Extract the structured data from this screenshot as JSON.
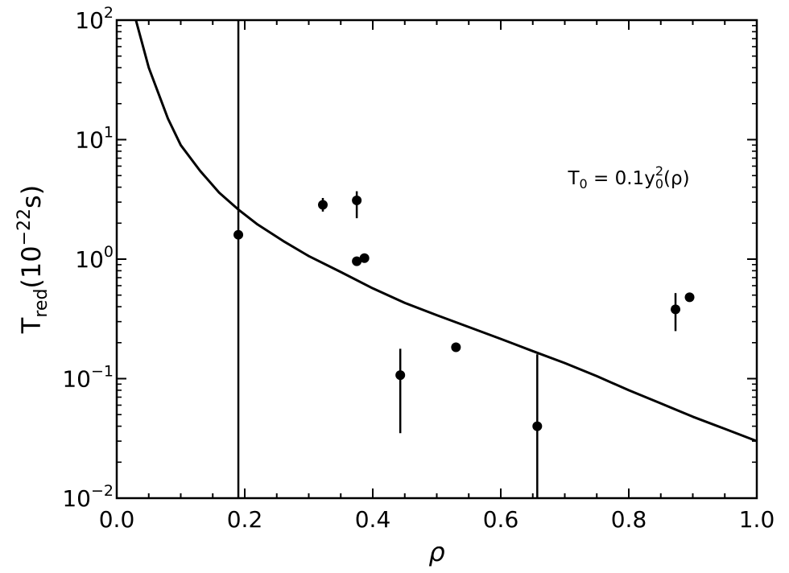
{
  "chart_data": {
    "type": "scatter",
    "title": "",
    "xlabel": "ρ",
    "ylabel": {
      "base": "T",
      "sub": "red",
      "rest": "(10",
      "sup": "−22",
      "tail": "s)"
    },
    "xlim": [
      0.0,
      1.0
    ],
    "ylim": [
      0.01,
      100
    ],
    "yscale": "log",
    "x_ticks": [
      "0.0",
      "0.2",
      "0.4",
      "0.6",
      "0.8",
      "1.0"
    ],
    "x_tick_values": [
      0.0,
      0.2,
      0.4,
      0.6,
      0.8,
      1.0
    ],
    "y_ticks": [
      {
        "value": 100,
        "base": "10",
        "exp": "2"
      },
      {
        "value": 10,
        "base": "10",
        "exp": "1"
      },
      {
        "value": 1,
        "base": "10",
        "exp": "0"
      },
      {
        "value": 0.1,
        "base": "10",
        "exp": "−1"
      },
      {
        "value": 0.01,
        "base": "10",
        "exp": "−2"
      }
    ],
    "grid": false,
    "series": [
      {
        "kind": "points",
        "color": "#000000",
        "points": [
          {
            "x": 0.19,
            "y": 1.6,
            "ylo": 0.0,
            "yhi": 100
          },
          {
            "x": 0.322,
            "y": 2.85,
            "ylo": 2.5,
            "yhi": 3.25
          },
          {
            "x": 0.375,
            "y": 3.1,
            "ylo": 2.2,
            "yhi": 3.7
          },
          {
            "x": 0.375,
            "y": 0.96,
            "ylo": 0.96,
            "yhi": 0.96
          },
          {
            "x": 0.387,
            "y": 1.02,
            "ylo": 1.02,
            "yhi": 1.02
          },
          {
            "x": 0.443,
            "y": 0.107,
            "ylo": 0.035,
            "yhi": 0.178
          },
          {
            "x": 0.53,
            "y": 0.183,
            "ylo": 0.183,
            "yhi": 0.183
          },
          {
            "x": 0.657,
            "y": 0.04,
            "ylo": 0.0,
            "yhi": 0.16
          },
          {
            "x": 0.873,
            "y": 0.38,
            "ylo": 0.25,
            "yhi": 0.52
          },
          {
            "x": 0.895,
            "y": 0.48,
            "ylo": 0.48,
            "yhi": 0.48
          }
        ]
      },
      {
        "kind": "curve",
        "color": "#000000",
        "x": [
          0.03,
          0.05,
          0.08,
          0.1,
          0.13,
          0.16,
          0.19,
          0.22,
          0.26,
          0.3,
          0.35,
          0.4,
          0.45,
          0.5,
          0.55,
          0.6,
          0.65,
          0.7,
          0.75,
          0.8,
          0.85,
          0.9,
          0.95,
          1.0
        ],
        "y": [
          100,
          40,
          15,
          9.0,
          5.5,
          3.6,
          2.6,
          1.95,
          1.42,
          1.06,
          0.78,
          0.57,
          0.43,
          0.34,
          0.27,
          0.215,
          0.17,
          0.135,
          0.105,
          0.08,
          0.062,
          0.048,
          0.038,
          0.03
        ]
      }
    ],
    "annotation": {
      "base": "T",
      "sub1": "0",
      "mid": " = 0.1y",
      "sup": "2",
      "sub2": "0",
      "tail": "(ρ)",
      "x": 0.705,
      "y": 4.8
    }
  }
}
